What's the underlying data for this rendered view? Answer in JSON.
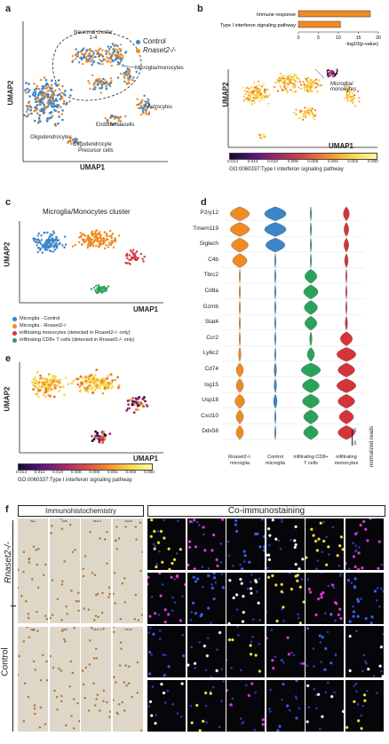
{
  "panels": {
    "a": {
      "label": "a",
      "legend": [
        {
          "name": "Control",
          "color": "#3a86c8"
        },
        {
          "name": "Rnaset2-/-",
          "color": "#f08a24"
        }
      ],
      "annotations": [
        "Neuronal cluster 1-4",
        "Microglia/monocytes",
        "Astrocytes",
        "Endothelial cells",
        "Oligodendrocytes",
        "Oligodendrocyte",
        "Precursor cells"
      ],
      "xlabel": "UMAP1",
      "ylabel": "UMAP2"
    },
    "b": {
      "label": "b",
      "bars_xlabel": "-log10(p-value)",
      "umap_annotation": "Microglia/ monocytes",
      "xlabel": "UMAP1",
      "ylabel": "UMAP2",
      "colorbar_ticks": [
        "0.014",
        "0.012",
        "0.010",
        "0.008",
        "0.006",
        "0.004",
        "0.002",
        "0.000"
      ],
      "colorbar_label": "GO:0060337:Type I interferon signaling pathway"
    },
    "c": {
      "label": "c",
      "title": "Microglia/Monocytes cluster",
      "xlabel": "UMAP1",
      "ylabel": "UMAP2",
      "legend": [
        {
          "text": "Microglia - Control",
          "color": "#3a86c8"
        },
        {
          "text": "Microglia - Rnaset2-/-",
          "color": "#f08a24"
        },
        {
          "text": "infiltrating monocytes (detected in Rnaset2-/- only)",
          "color": "#d6343b"
        },
        {
          "text": "infiltrating CD8+ T cells (detected in Rnaset2-/- only)",
          "color": "#2aa35a"
        }
      ]
    },
    "d": {
      "label": "d",
      "genes": [
        "P2ry12",
        "Tmem119",
        "Siglech",
        "C4b",
        "Tbrc2",
        "Cd8a",
        "Gzmb",
        "Stat4",
        "Ccr2",
        "Ly6c2",
        "Cd74",
        "Isg15",
        "Usp18",
        "Cxcl10",
        "Ddx58"
      ],
      "groups": [
        "Rnaset2-/- microglia",
        "Control microglia",
        "infiltrating CD8+ T cells",
        "infiltrating monocytes"
      ],
      "group_colors": [
        "#f08a24",
        "#3a86c8",
        "#2aa35a",
        "#d6343b"
      ],
      "scale_top": "5",
      "scale_bottom": "0",
      "scale_label": "normalized reads"
    },
    "e": {
      "label": "e",
      "xlabel": "UMAP1",
      "ylabel": "UMAP2",
      "colorbar_ticks": [
        "0.014",
        "0.012",
        "0.010",
        "0.008",
        "0.006",
        "0.004",
        "0.002",
        "0.000"
      ],
      "colorbar_label": "GO:0060337:Type I interferon signaling pathway"
    },
    "f": {
      "label": "f",
      "ihc_title": "Immunohistochemistry",
      "co_title": "Co-immunostaining",
      "row_labels": [
        "Rnaset2-/-",
        "Control"
      ],
      "ihc_cols": [
        "Iba1",
        "CD8",
        "MHC II",
        "ISG15"
      ]
    }
  },
  "chart_data": {
    "type": "bar",
    "categories": [
      "Immune response",
      "Type I interferon signaling pathway"
    ],
    "values": [
      18,
      10.5
    ],
    "xlabel": "-log10(p-value)",
    "xlim": [
      0,
      20
    ],
    "xticks": [
      "0",
      "5",
      "10",
      "15",
      "20"
    ]
  }
}
